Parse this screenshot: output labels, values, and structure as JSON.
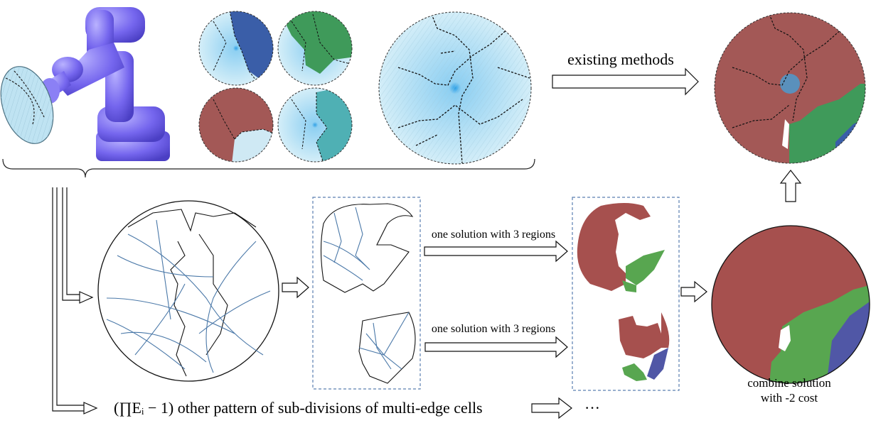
{
  "labels": {
    "existing_methods": "existing methods",
    "solution_top": "one solution with 3 regions",
    "solution_bottom": "one solution with 3 regions",
    "combine_line1": "combine solution",
    "combine_line2": "with -2 cost",
    "other_patterns": "(∏Eᵢ − 1) other pattern of sub-divisions of multi-edge cells",
    "ellipsis": "···"
  },
  "colors": {
    "robot": "#7b6cf0",
    "mesh_light": "#bfe3f2",
    "mesh_blue": "#3a5ea8",
    "mesh_green": "#3f9a5a",
    "mesh_red": "#a35856",
    "mesh_teal": "#4fb0b4",
    "region_red": "#a6504e",
    "region_green": "#58a650",
    "region_blue": "#5057a6",
    "curve_blue": "#4a78a8",
    "box_dash": "#5a7fb0"
  }
}
